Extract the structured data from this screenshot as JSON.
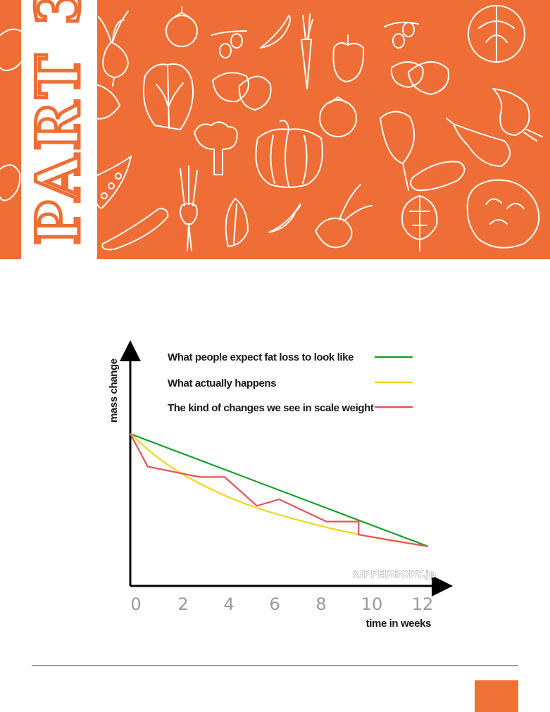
{
  "banner": {
    "part_label": "PART 3",
    "background_color": "#ef6e35",
    "strip_color": "#ffffff",
    "label_color": "#ef6e35",
    "icons": [
      "beetroot-icon",
      "tomato-icon",
      "olive-icon",
      "chili-pepper-icon",
      "carrot-icon",
      "bell-pepper-icon",
      "olive-icon",
      "cabbage-icon",
      "lettuce-icon",
      "potato-icon",
      "potato-icon",
      "onion-icon",
      "broccoli-icon",
      "pumpkin-icon",
      "tomato-icon",
      "spinach-leaf-icon",
      "eggplant-icon",
      "pea-pod-icon",
      "green-onion-icon",
      "endive-icon",
      "chili-pepper-icon",
      "radish-icon",
      "artichoke-icon",
      "cucumber-icon",
      "cauliflower-icon",
      "potato-icon",
      "zucchini-icon"
    ]
  },
  "chart_data": {
    "type": "line",
    "xlabel": "time in weeks",
    "ylabel": "mass change",
    "x_ticks": [
      "0",
      "2",
      "4",
      "6",
      "8",
      "10",
      "12"
    ],
    "xlim": [
      0,
      12
    ],
    "ylim": [
      0,
      100
    ],
    "grid": false,
    "legend_position": "top",
    "watermark": "RIPPEDBODY.jp",
    "series": [
      {
        "name": "What people expect fat loss to look like",
        "color": "#15a02c",
        "shape": "linear",
        "points": [
          [
            0,
            100
          ],
          [
            12,
            14
          ]
        ]
      },
      {
        "name": "What actually happens",
        "color": "#f2d51c",
        "shape": "curve",
        "points": [
          [
            0,
            100
          ],
          [
            1,
            83
          ],
          [
            2,
            70
          ],
          [
            3,
            60
          ],
          [
            4,
            51
          ],
          [
            5,
            44
          ],
          [
            6,
            38
          ],
          [
            7,
            33
          ],
          [
            8,
            28
          ],
          [
            9,
            24
          ],
          [
            10,
            20
          ],
          [
            11,
            17
          ],
          [
            12,
            14
          ]
        ]
      },
      {
        "name": "The kind of changes we see in scale weight",
        "color": "#e4555a",
        "shape": "linear",
        "points": [
          [
            0,
            100
          ],
          [
            0.7,
            75
          ],
          [
            2.8,
            67
          ],
          [
            3.8,
            67
          ],
          [
            5.1,
            45
          ],
          [
            6.0,
            50
          ],
          [
            7.9,
            33
          ],
          [
            9.2,
            33
          ],
          [
            9.2,
            23
          ],
          [
            12,
            14
          ]
        ]
      }
    ]
  }
}
